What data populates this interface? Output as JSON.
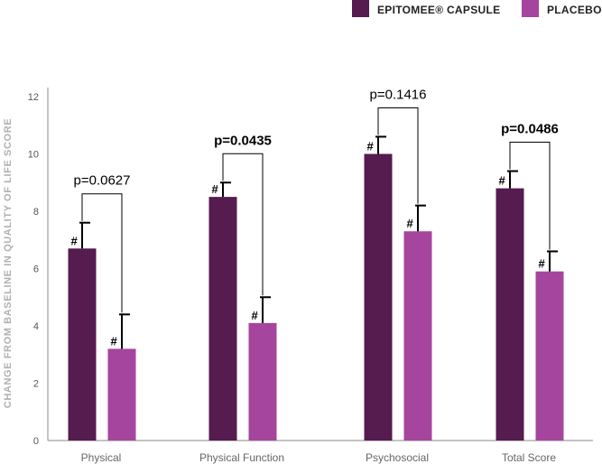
{
  "chart_data": {
    "type": "bar",
    "ylabel": "CHANGE FROM BASELINE IN QUALITY OF LIFE SCORE",
    "ylim": [
      0,
      12
    ],
    "yticks": [
      0,
      2,
      4,
      6,
      8,
      10,
      12
    ],
    "grid": false,
    "legend_position": "top-right",
    "categories": [
      "Physical",
      "Physical Function",
      "Psychosocial",
      "Total Score"
    ],
    "series": [
      {
        "name": "EPITOMEE® CAPSULE",
        "color": "#561b4f",
        "values": [
          6.7,
          8.5,
          10.0,
          8.8
        ],
        "error_upper": [
          7.6,
          9.0,
          10.6,
          9.4
        ],
        "markers": [
          "#",
          "#",
          "#",
          "#"
        ]
      },
      {
        "name": "PLACEBO",
        "color": "#a5459e",
        "values": [
          3.2,
          4.1,
          7.3,
          5.9
        ],
        "error_upper": [
          4.4,
          5.0,
          8.2,
          6.6
        ],
        "markers": [
          "#",
          "#",
          "#",
          "#"
        ]
      }
    ],
    "comparisons": [
      {
        "label": "p=0.0627",
        "bold": false
      },
      {
        "label": "p=0.0435",
        "bold": true
      },
      {
        "label": "p=0.1416",
        "bold": false
      },
      {
        "label": "p=0.0486",
        "bold": true
      }
    ]
  }
}
